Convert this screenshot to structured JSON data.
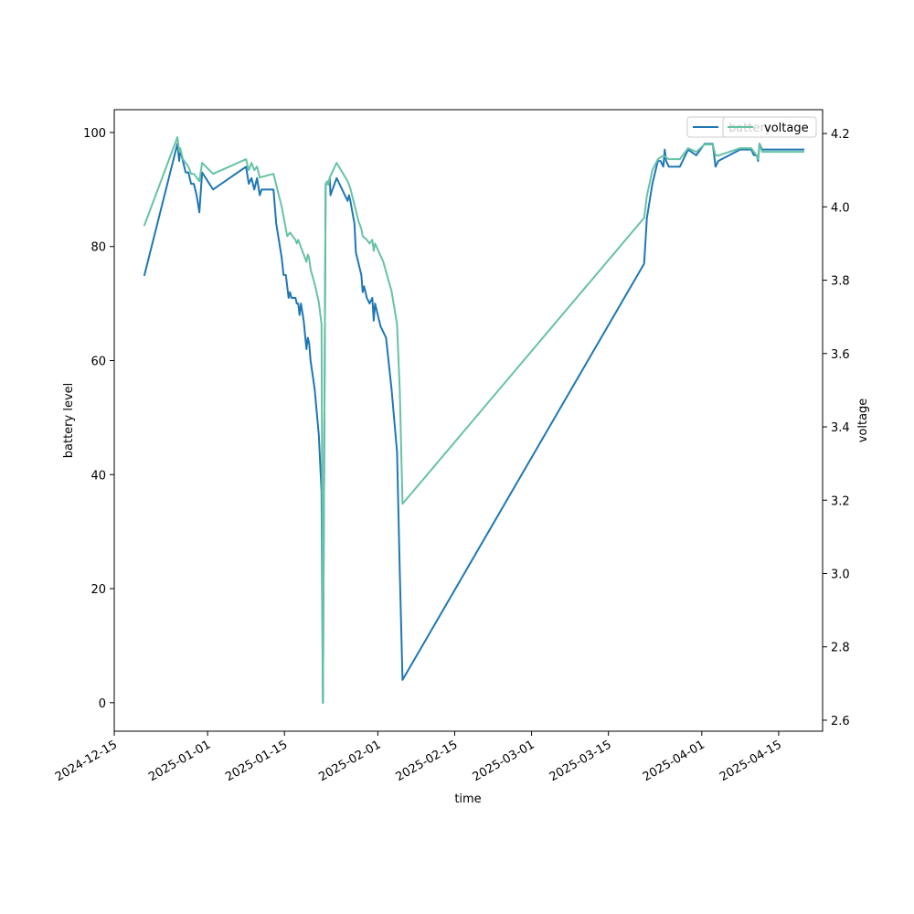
{
  "chart_data": {
    "type": "line",
    "title": "",
    "xlabel": "time",
    "ylabel": "battery level",
    "y2label": "voltage",
    "xlim": [
      "2024-12-15",
      "2025-04-23"
    ],
    "ylim": [
      -5,
      104
    ],
    "y2lim": [
      2.57,
      4.265
    ],
    "x_ticks": [
      "2024-12-15",
      "2025-01-01",
      "2025-01-15",
      "2025-02-01",
      "2025-02-15",
      "2025-03-01",
      "2025-03-15",
      "2025-04-01",
      "2025-04-15"
    ],
    "y_ticks": [
      0,
      20,
      40,
      60,
      80,
      100
    ],
    "y2_ticks": [
      "2.6",
      "2.8",
      "3.0",
      "3.2",
      "3.4",
      "3.6",
      "3.8",
      "4.0",
      "4.2"
    ],
    "grid": false,
    "legend_position": "upper right",
    "series": [
      {
        "name": "battery",
        "axis": "left",
        "color": "#1f77b4",
        "points": [
          [
            "2024-12-20T12:00",
            75
          ],
          [
            "2024-12-26T12:00",
            98
          ],
          [
            "2024-12-26T20:00",
            95
          ],
          [
            "2024-12-27T00:00",
            97
          ],
          [
            "2024-12-27T12:00",
            95
          ],
          [
            "2024-12-28T00:00",
            93
          ],
          [
            "2024-12-28T12:00",
            93
          ],
          [
            "2024-12-29T00:00",
            91
          ],
          [
            "2024-12-29T12:00",
            91
          ],
          [
            "2024-12-30T00:00",
            89
          ],
          [
            "2024-12-30T12:00",
            86
          ],
          [
            "2024-12-31T00:00",
            93
          ],
          [
            "2025-01-02T00:00",
            90
          ],
          [
            "2025-01-08T00:00",
            94
          ],
          [
            "2025-01-08T12:00",
            91
          ],
          [
            "2025-01-09T00:00",
            92
          ],
          [
            "2025-01-09T12:00",
            90
          ],
          [
            "2025-01-10T00:00",
            92
          ],
          [
            "2025-01-10T12:00",
            89
          ],
          [
            "2025-01-10T20:00",
            90
          ],
          [
            "2025-01-13T00:00",
            90
          ],
          [
            "2025-01-13T12:00",
            84
          ],
          [
            "2025-01-14T00:00",
            81
          ],
          [
            "2025-01-14T12:00",
            78
          ],
          [
            "2025-01-14T20:00",
            75
          ],
          [
            "2025-01-15T06:00",
            75
          ],
          [
            "2025-01-15T18:00",
            71
          ],
          [
            "2025-01-16T00:00",
            72
          ],
          [
            "2025-01-16T06:00",
            71
          ],
          [
            "2025-01-17T00:00",
            71
          ],
          [
            "2025-01-17T06:00",
            70
          ],
          [
            "2025-01-17T12:00",
            70
          ],
          [
            "2025-01-17T18:00",
            68
          ],
          [
            "2025-01-18T00:00",
            70
          ],
          [
            "2025-01-18T12:00",
            67
          ],
          [
            "2025-01-19T00:00",
            62
          ],
          [
            "2025-01-19T06:00",
            64
          ],
          [
            "2025-01-19T12:00",
            63
          ],
          [
            "2025-01-19T18:00",
            60
          ],
          [
            "2025-01-20T12:00",
            55
          ],
          [
            "2025-01-21T06:00",
            47
          ],
          [
            "2025-01-21T18:00",
            37
          ],
          [
            "2025-01-22T00:00",
            0
          ],
          [
            "2025-01-22T12:00",
            91
          ],
          [
            "2025-01-23T00:00",
            91
          ],
          [
            "2025-01-23T06:00",
            92
          ],
          [
            "2025-01-23T09:00",
            89
          ],
          [
            "2025-01-23T18:00",
            90
          ],
          [
            "2025-01-24T12:00",
            92
          ],
          [
            "2025-01-26T12:00",
            88
          ],
          [
            "2025-01-26T18:00",
            89
          ],
          [
            "2025-01-27T00:00",
            88
          ],
          [
            "2025-01-27T18:00",
            84
          ],
          [
            "2025-01-28T00:00",
            79
          ],
          [
            "2025-01-28T18:00",
            76
          ],
          [
            "2025-01-29T00:00",
            75
          ],
          [
            "2025-01-29T06:00",
            72
          ],
          [
            "2025-01-29T12:00",
            73
          ],
          [
            "2025-01-30T00:00",
            71
          ],
          [
            "2025-01-30T12:00",
            70
          ],
          [
            "2025-01-31T00:00",
            71
          ],
          [
            "2025-01-31T06:00",
            67
          ],
          [
            "2025-01-31T12:00",
            70
          ],
          [
            "2025-02-01T12:00",
            66
          ],
          [
            "2025-02-02T12:00",
            64
          ],
          [
            "2025-02-03T12:00",
            55
          ],
          [
            "2025-02-04T12:00",
            44
          ],
          [
            "2025-02-05T00:00",
            23
          ],
          [
            "2025-02-05T12:00",
            4
          ],
          [
            "2025-03-21T12:00",
            77
          ],
          [
            "2025-03-22T00:00",
            85
          ],
          [
            "2025-03-23T00:00",
            91
          ],
          [
            "2025-03-24T00:00",
            95
          ],
          [
            "2025-03-24T12:00",
            95
          ],
          [
            "2025-03-25T00:00",
            94
          ],
          [
            "2025-03-25T06:00",
            97
          ],
          [
            "2025-03-25T12:00",
            95
          ],
          [
            "2025-03-26T00:00",
            94
          ],
          [
            "2025-03-28T00:00",
            94
          ],
          [
            "2025-03-29T12:00",
            97
          ],
          [
            "2025-03-31T00:00",
            96
          ],
          [
            "2025-04-01T12:00",
            98
          ],
          [
            "2025-04-03T00:00",
            98
          ],
          [
            "2025-04-03T12:00",
            94
          ],
          [
            "2025-04-04T00:00",
            95
          ],
          [
            "2025-04-06T00:00",
            96
          ],
          [
            "2025-04-08T00:00",
            97
          ],
          [
            "2025-04-10T00:00",
            97
          ],
          [
            "2025-04-10T12:00",
            96
          ],
          [
            "2025-04-11T00:00",
            96
          ],
          [
            "2025-04-11T06:00",
            95
          ],
          [
            "2025-04-11T12:00",
            98
          ],
          [
            "2025-04-12T00:00",
            97
          ],
          [
            "2025-04-14T00:00",
            97
          ],
          [
            "2025-04-19T12:00",
            97
          ]
        ]
      },
      {
        "name": "voltage",
        "axis": "right",
        "color": "#66c2a5",
        "points": [
          [
            "2024-12-20T12:00",
            3.95
          ],
          [
            "2024-12-26T12:00",
            4.19
          ],
          [
            "2024-12-26T20:00",
            4.15
          ],
          [
            "2024-12-27T00:00",
            4.16
          ],
          [
            "2024-12-27T12:00",
            4.13
          ],
          [
            "2024-12-28T00:00",
            4.12
          ],
          [
            "2024-12-28T12:00",
            4.11
          ],
          [
            "2024-12-29T00:00",
            4.09
          ],
          [
            "2024-12-29T12:00",
            4.09
          ],
          [
            "2024-12-30T00:00",
            4.08
          ],
          [
            "2024-12-30T12:00",
            4.07
          ],
          [
            "2024-12-31T00:00",
            4.12
          ],
          [
            "2025-01-02T00:00",
            4.09
          ],
          [
            "2025-01-08T00:00",
            4.13
          ],
          [
            "2025-01-08T12:00",
            4.1
          ],
          [
            "2025-01-09T00:00",
            4.12
          ],
          [
            "2025-01-09T12:00",
            4.1
          ],
          [
            "2025-01-10T00:00",
            4.11
          ],
          [
            "2025-01-10T12:00",
            4.08
          ],
          [
            "2025-01-13T00:00",
            4.09
          ],
          [
            "2025-01-14T12:00",
            4.0
          ],
          [
            "2025-01-15T00:00",
            3.96
          ],
          [
            "2025-01-15T12:00",
            3.92
          ],
          [
            "2025-01-16T00:00",
            3.93
          ],
          [
            "2025-01-17T00:00",
            3.91
          ],
          [
            "2025-01-17T06:00",
            3.9
          ],
          [
            "2025-01-17T12:00",
            3.91
          ],
          [
            "2025-01-18T00:00",
            3.89
          ],
          [
            "2025-01-19T00:00",
            3.85
          ],
          [
            "2025-01-19T06:00",
            3.87
          ],
          [
            "2025-01-19T12:00",
            3.86
          ],
          [
            "2025-01-19T18:00",
            3.83
          ],
          [
            "2025-01-20T12:00",
            3.79
          ],
          [
            "2025-01-21T06:00",
            3.74
          ],
          [
            "2025-01-21T18:00",
            3.68
          ],
          [
            "2025-01-22T00:00",
            2.65
          ],
          [
            "2025-01-22T12:00",
            4.06
          ],
          [
            "2025-01-22T18:00",
            4.07
          ],
          [
            "2025-01-23T00:00",
            4.06
          ],
          [
            "2025-01-23T06:00",
            4.08
          ],
          [
            "2025-01-24T12:00",
            4.12
          ],
          [
            "2025-01-26T12:00",
            4.07
          ],
          [
            "2025-01-27T00:00",
            4.05
          ],
          [
            "2025-01-27T12:00",
            4.02
          ],
          [
            "2025-01-28T00:00",
            3.99
          ],
          [
            "2025-01-28T12:00",
            3.96
          ],
          [
            "2025-01-29T00:00",
            3.94
          ],
          [
            "2025-01-29T06:00",
            3.92
          ],
          [
            "2025-01-30T00:00",
            3.91
          ],
          [
            "2025-01-30T12:00",
            3.9
          ],
          [
            "2025-01-31T00:00",
            3.91
          ],
          [
            "2025-01-31T06:00",
            3.88
          ],
          [
            "2025-01-31T12:00",
            3.9
          ],
          [
            "2025-02-02T00:00",
            3.85
          ],
          [
            "2025-02-03T12:00",
            3.77
          ],
          [
            "2025-02-04T12:00",
            3.68
          ],
          [
            "2025-02-05T00:00",
            3.5
          ],
          [
            "2025-02-05T12:00",
            3.19
          ],
          [
            "2025-03-21T12:00",
            3.97
          ],
          [
            "2025-03-22T00:00",
            4.03
          ],
          [
            "2025-03-23T00:00",
            4.1
          ],
          [
            "2025-03-24T00:00",
            4.13
          ],
          [
            "2025-03-25T00:00",
            4.14
          ],
          [
            "2025-03-26T00:00",
            4.13
          ],
          [
            "2025-03-28T00:00",
            4.13
          ],
          [
            "2025-03-29T12:00",
            4.16
          ],
          [
            "2025-03-31T00:00",
            4.15
          ],
          [
            "2025-04-01T12:00",
            4.17
          ],
          [
            "2025-04-03T00:00",
            4.17
          ],
          [
            "2025-04-03T12:00",
            4.14
          ],
          [
            "2025-04-04T00:00",
            4.14
          ],
          [
            "2025-04-06T00:00",
            4.15
          ],
          [
            "2025-04-08T00:00",
            4.16
          ],
          [
            "2025-04-10T00:00",
            4.16
          ],
          [
            "2025-04-10T12:00",
            4.15
          ],
          [
            "2025-04-11T00:00",
            4.14
          ],
          [
            "2025-04-11T06:00",
            4.13
          ],
          [
            "2025-04-11T12:00",
            4.17
          ],
          [
            "2025-04-12T00:00",
            4.15
          ],
          [
            "2025-04-14T00:00",
            4.15
          ],
          [
            "2025-04-19T12:00",
            4.15
          ]
        ]
      }
    ]
  }
}
